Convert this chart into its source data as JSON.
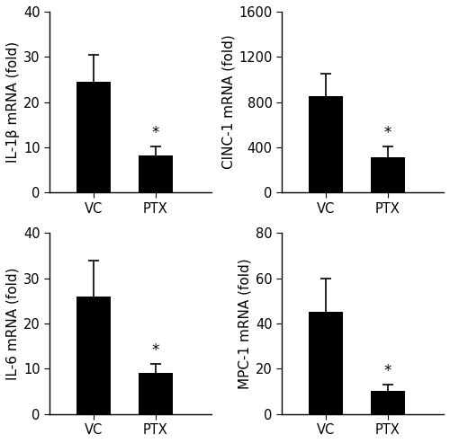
{
  "subplots": [
    {
      "ylabel": "IL-1β mRNA (fold)",
      "categories": [
        "VC",
        "PTX"
      ],
      "values": [
        24.5,
        8.2
      ],
      "errors": [
        6.0,
        2.0
      ],
      "ylim": [
        0,
        40
      ],
      "yticks": [
        0,
        10,
        20,
        30,
        40
      ],
      "sig_ptx": true
    },
    {
      "ylabel": "CINC-1 mRNA (fold)",
      "categories": [
        "VC",
        "PTX"
      ],
      "values": [
        850,
        310
      ],
      "errors": [
        200,
        100
      ],
      "ylim": [
        0,
        1600
      ],
      "yticks": [
        0,
        400,
        800,
        1200,
        1600
      ],
      "sig_ptx": true
    },
    {
      "ylabel": "IL-6 mRNA (fold)",
      "categories": [
        "VC",
        "PTX"
      ],
      "values": [
        26.0,
        9.0
      ],
      "errors": [
        8.0,
        2.0
      ],
      "ylim": [
        0,
        40
      ],
      "yticks": [
        0,
        10,
        20,
        30,
        40
      ],
      "sig_ptx": true
    },
    {
      "ylabel": "MPC-1 mRNA (fold)",
      "categories": [
        "VC",
        "PTX"
      ],
      "values": [
        45.0,
        10.0
      ],
      "errors": [
        15.0,
        3.0
      ],
      "ylim": [
        0,
        80
      ],
      "yticks": [
        0,
        20,
        40,
        60,
        80
      ],
      "sig_ptx": true
    }
  ],
  "bar_positions": [
    1.0,
    2.0
  ],
  "xlim": [
    0.3,
    2.9
  ],
  "bar_color": "#000000",
  "bar_width": 0.55,
  "capsize": 4,
  "error_color": "#000000",
  "background_color": "#ffffff",
  "font_size": 11,
  "tick_font_size": 10.5,
  "label_font_size": 11
}
